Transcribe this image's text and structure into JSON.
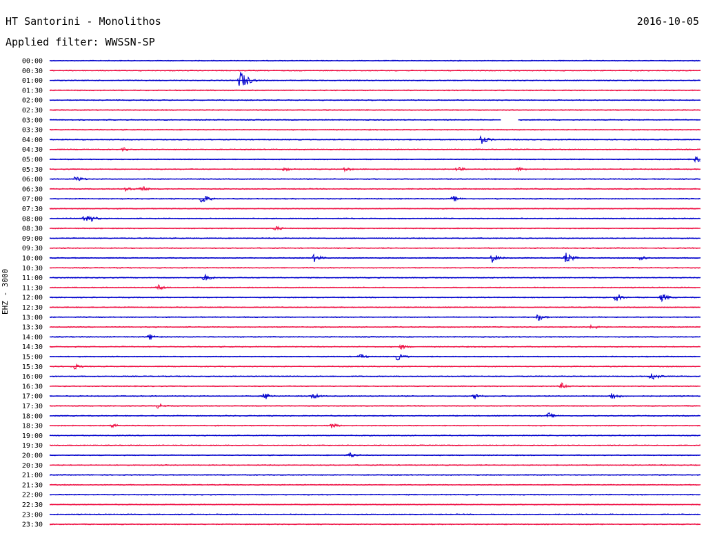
{
  "header": {
    "station": "HT Santorini - Monolithos",
    "date": "2016-10-05",
    "filter": "Applied filter: WWSSN-SP"
  },
  "chart_data": {
    "type": "line",
    "title": "HT Santorini - Monolithos",
    "ylabel": "EHZ - 3000",
    "colors": [
      "#0000cc",
      "#ee1144"
    ],
    "rows": [
      "00:00",
      "00:30",
      "01:00",
      "01:30",
      "02:00",
      "02:30",
      "03:00",
      "03:30",
      "04:00",
      "04:30",
      "05:00",
      "05:30",
      "06:00",
      "06:30",
      "07:00",
      "07:30",
      "08:00",
      "08:30",
      "09:00",
      "09:30",
      "10:00",
      "10:30",
      "11:00",
      "11:30",
      "12:00",
      "12:30",
      "13:00",
      "13:30",
      "14:00",
      "14:30",
      "15:00",
      "15:30",
      "16:00",
      "16:30",
      "17:00",
      "17:30",
      "18:00",
      "18:30",
      "19:00",
      "19:30",
      "20:00",
      "20:30",
      "21:00",
      "21:30",
      "22:00",
      "22:30",
      "23:00",
      "23:30"
    ],
    "gaps": [
      {
        "row": "03:00",
        "from_min": 20.8,
        "to_min": 21.6
      }
    ],
    "events": [
      {
        "row": "01:00",
        "min": 8.8,
        "amp": 16
      },
      {
        "row": "04:00",
        "min": 19.9,
        "amp": 7
      },
      {
        "row": "04:30",
        "min": 3.4,
        "amp": 3
      },
      {
        "row": "05:00",
        "min": 29.8,
        "amp": 5
      },
      {
        "row": "05:30",
        "min": 10.8,
        "amp": 4
      },
      {
        "row": "05:30",
        "min": 13.6,
        "amp": 4
      },
      {
        "row": "05:30",
        "min": 18.8,
        "amp": 4
      },
      {
        "row": "05:30",
        "min": 21.6,
        "amp": 4
      },
      {
        "row": "06:00",
        "min": 1.2,
        "amp": 5
      },
      {
        "row": "06:30",
        "min": 3.5,
        "amp": 5
      },
      {
        "row": "06:30",
        "min": 4.2,
        "amp": 5
      },
      {
        "row": "07:00",
        "min": 18.6,
        "amp": 5
      },
      {
        "row": "07:00",
        "min": 7.0,
        "amp": 8
      },
      {
        "row": "08:00",
        "min": 1.6,
        "amp": 6
      },
      {
        "row": "08:00",
        "min": 1.7,
        "amp": 9
      },
      {
        "row": "08:30",
        "min": 10.4,
        "amp": 4
      },
      {
        "row": "10:00",
        "min": 12.2,
        "amp": 6
      },
      {
        "row": "10:00",
        "min": 20.4,
        "amp": 7
      },
      {
        "row": "10:00",
        "min": 23.8,
        "amp": 8
      },
      {
        "row": "10:00",
        "min": 27.2,
        "amp": 5
      },
      {
        "row": "11:00",
        "min": 7.1,
        "amp": 6
      },
      {
        "row": "11:30",
        "min": 5.0,
        "amp": 5
      },
      {
        "row": "12:00",
        "min": 26.1,
        "amp": 6
      },
      {
        "row": "12:00",
        "min": 28.2,
        "amp": 6
      },
      {
        "row": "13:00",
        "min": 22.5,
        "amp": 6
      },
      {
        "row": "13:30",
        "min": 25.0,
        "amp": 4
      },
      {
        "row": "14:00",
        "min": 4.6,
        "amp": 5
      },
      {
        "row": "14:30",
        "min": 16.2,
        "amp": 4
      },
      {
        "row": "15:00",
        "min": 16.0,
        "amp": 6
      },
      {
        "row": "15:00",
        "min": 14.3,
        "amp": 4
      },
      {
        "row": "15:30",
        "min": 1.1,
        "amp": 5
      },
      {
        "row": "16:00",
        "min": 27.7,
        "amp": 7
      },
      {
        "row": "16:30",
        "min": 23.6,
        "amp": 5
      },
      {
        "row": "17:00",
        "min": 9.9,
        "amp": 6
      },
      {
        "row": "17:00",
        "min": 12.1,
        "amp": 5
      },
      {
        "row": "17:00",
        "min": 19.6,
        "amp": 5
      },
      {
        "row": "17:00",
        "min": 25.9,
        "amp": 6
      },
      {
        "row": "17:30",
        "min": 5.0,
        "amp": 4
      },
      {
        "row": "18:00",
        "min": 23.0,
        "amp": 5
      },
      {
        "row": "18:30",
        "min": 2.9,
        "amp": 4
      },
      {
        "row": "18:30",
        "min": 13.0,
        "amp": 4
      },
      {
        "row": "20:00",
        "min": 13.8,
        "amp": 5
      }
    ]
  }
}
